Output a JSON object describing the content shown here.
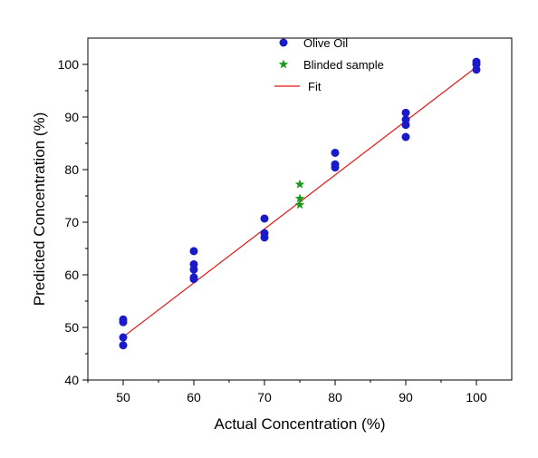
{
  "chart_data": {
    "type": "scatter",
    "xlabel": "Actual Concentration (%)",
    "ylabel": "Predicted Concentration (%)",
    "xlim": [
      45,
      105
    ],
    "ylim": [
      40,
      105
    ],
    "x_ticks": [
      50,
      60,
      70,
      80,
      90,
      100
    ],
    "y_ticks": [
      40,
      50,
      60,
      70,
      80,
      90,
      100
    ],
    "legend_position": "top-center",
    "series": [
      {
        "name": "Olive Oil",
        "marker": "circle",
        "color": "#1a1ac8",
        "points": [
          [
            50,
            51.5
          ],
          [
            50,
            51.0
          ],
          [
            50,
            48.1
          ],
          [
            50,
            46.6
          ],
          [
            60,
            64.5
          ],
          [
            60,
            62.0
          ],
          [
            60,
            61.0
          ],
          [
            60,
            59.5
          ],
          [
            60,
            59.2
          ],
          [
            70,
            70.7
          ],
          [
            70,
            67.9
          ],
          [
            70,
            67.1
          ],
          [
            80,
            83.2
          ],
          [
            80,
            81.0
          ],
          [
            80,
            80.4
          ],
          [
            90,
            90.8
          ],
          [
            90,
            89.5
          ],
          [
            90,
            88.5
          ],
          [
            90,
            86.2
          ],
          [
            100,
            100.5
          ],
          [
            100,
            100.0
          ],
          [
            100,
            99.0
          ]
        ]
      },
      {
        "name": "Blinded sample",
        "marker": "star",
        "color": "#1a9a1a",
        "points": [
          [
            75,
            77.2
          ],
          [
            75,
            74.5
          ],
          [
            75,
            73.3
          ]
        ]
      },
      {
        "name": "Fit",
        "marker": "line",
        "color": "#e8140f",
        "points": [
          [
            50,
            48.2
          ],
          [
            100,
            99.5
          ]
        ]
      }
    ]
  }
}
